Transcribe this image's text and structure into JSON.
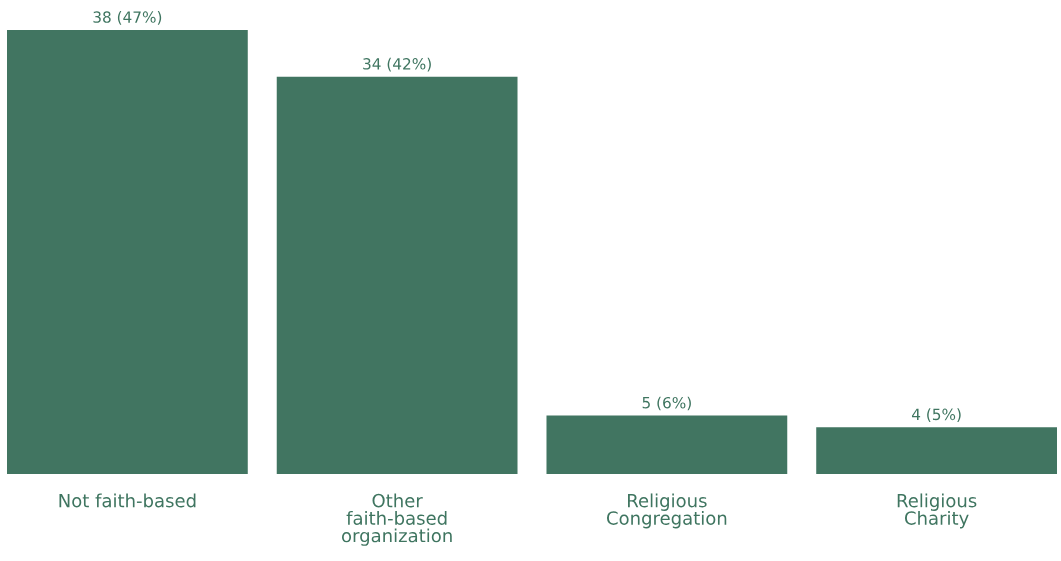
{
  "chart_data": {
    "type": "bar",
    "categories": [
      "Not faith-based",
      "Other\nfaith-based\norganization",
      "Religious\nCongregation",
      "Religious\nCharity"
    ],
    "values": [
      38,
      34,
      5,
      4
    ],
    "value_labels": [
      "38 (47%)",
      "34 (42%)",
      "5 (6%)",
      "4 (5%)"
    ],
    "color": "#417561",
    "grid": false,
    "legend": false
  }
}
